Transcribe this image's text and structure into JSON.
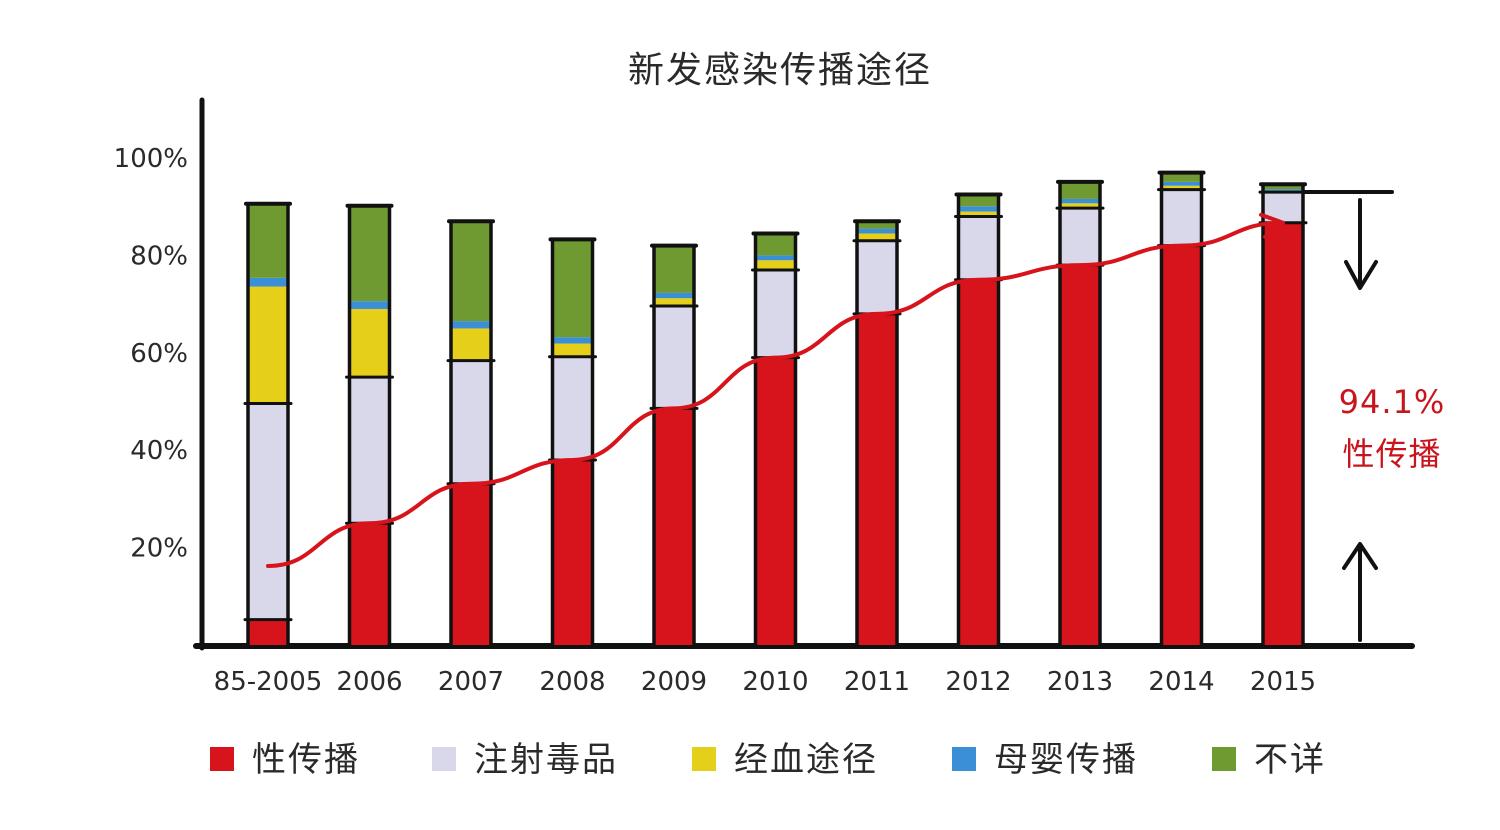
{
  "chart_data": {
    "type": "bar",
    "stacked": true,
    "title": "新发感染传播途径",
    "xlabel": "",
    "ylabel": "",
    "ylim": [
      0,
      100
    ],
    "yticks": [
      "20%",
      "40%",
      "60%",
      "80%",
      "100%"
    ],
    "ytick_values": [
      20,
      40,
      60,
      80,
      100
    ],
    "categories": [
      "85-2005",
      "2006",
      "2007",
      "2008",
      "2009",
      "2010",
      "2011",
      "2012",
      "2013",
      "2014",
      "2015"
    ],
    "series": [
      {
        "name": "性传播",
        "color": "#d7141c",
        "values": [
          5.2,
          25.0,
          33.1,
          38.0,
          48.6,
          59.0,
          68.0,
          75.0,
          78.0,
          82.0,
          86.7
        ]
      },
      {
        "name": "注射毒品",
        "color": "#d9d8ea",
        "values": [
          44.4,
          30.0,
          25.3,
          21.2,
          21.0,
          18.0,
          15.0,
          13.0,
          11.7,
          11.5,
          6.3
        ]
      },
      {
        "name": "经血途径",
        "color": "#e6cf18",
        "values": [
          24.0,
          14.0,
          6.6,
          2.7,
          1.6,
          2.0,
          1.5,
          1.0,
          1.0,
          0.8,
          0.3
        ]
      },
      {
        "name": "母婴传播",
        "color": "#3a8fd6",
        "values": [
          1.8,
          1.6,
          1.5,
          1.3,
          1.1,
          1.0,
          1.0,
          1.1,
          0.9,
          0.8,
          0.3
        ]
      },
      {
        "name": "不详",
        "color": "#6f9a32",
        "values": [
          15.2,
          19.6,
          20.5,
          20.1,
          9.7,
          4.5,
          1.5,
          2.4,
          3.5,
          1.9,
          1.0
        ]
      }
    ],
    "trend_line": {
      "series": "性传播",
      "color": "#d7141c"
    },
    "annotation": {
      "value": "94.1%",
      "label": "性传播"
    },
    "legend_position": "bottom",
    "grid": false
  }
}
